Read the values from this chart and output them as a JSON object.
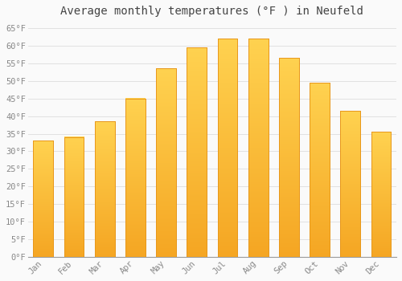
{
  "title": "Average monthly temperatures (°F ) in Neufeld",
  "months": [
    "Jan",
    "Feb",
    "Mar",
    "Apr",
    "May",
    "Jun",
    "Jul",
    "Aug",
    "Sep",
    "Oct",
    "Nov",
    "Dec"
  ],
  "values": [
    33,
    34,
    38.5,
    45,
    53.5,
    59.5,
    62,
    62,
    56.5,
    49.5,
    41.5,
    35.5
  ],
  "bar_color_top": "#FFD966",
  "bar_color_bottom": "#F5A623",
  "bar_color_edge": "#E8981C",
  "background_color": "#FAFAFA",
  "plot_bg_color": "#FAFAFA",
  "grid_color": "#DDDDDD",
  "ytick_labels": [
    "0°F",
    "5°F",
    "10°F",
    "15°F",
    "20°F",
    "25°F",
    "30°F",
    "35°F",
    "40°F",
    "45°F",
    "50°F",
    "55°F",
    "60°F",
    "65°F"
  ],
  "ytick_values": [
    0,
    5,
    10,
    15,
    20,
    25,
    30,
    35,
    40,
    45,
    50,
    55,
    60,
    65
  ],
  "ylim": [
    0,
    67
  ],
  "title_fontsize": 10,
  "tick_fontsize": 7.5,
  "title_color": "#444444",
  "tick_color": "#888888",
  "font_family": "monospace"
}
